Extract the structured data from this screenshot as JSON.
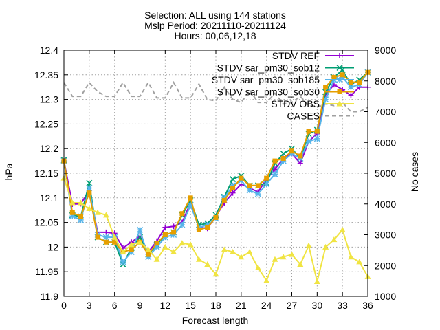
{
  "chart_data": {
    "type": "line",
    "title_lines": [
      "Selection: ALL using    144 stations",
      "Mslp   Period: 20211110-20211124",
      "Hours: 00,06,12,18"
    ],
    "xlabel": "Forecast length",
    "ylabel": "hPa",
    "y2label": "No cases",
    "xlim": [
      0,
      36
    ],
    "ylim": [
      11.9,
      12.4
    ],
    "y2lim": [
      1000,
      9000
    ],
    "xticks": [
      "0",
      "3",
      "6",
      "9",
      "12",
      "15",
      "18",
      "21",
      "24",
      "27",
      "30",
      "33",
      "36"
    ],
    "yticks": [
      "11.9",
      "11.95",
      "12",
      "12.05",
      "12.1",
      "12.15",
      "12.2",
      "12.25",
      "12.3",
      "12.35",
      "12.4"
    ],
    "y2ticks": [
      "1000",
      "2000",
      "3000",
      "4000",
      "5000",
      "6000",
      "7000",
      "8000",
      "9000"
    ],
    "grid": true,
    "legend_position": "top-right",
    "x": [
      0,
      1,
      2,
      3,
      4,
      5,
      6,
      7,
      8,
      9,
      10,
      11,
      12,
      13,
      14,
      15,
      16,
      17,
      18,
      19,
      20,
      21,
      22,
      23,
      24,
      25,
      26,
      27,
      28,
      29,
      30,
      31,
      32,
      33,
      34,
      35,
      36
    ],
    "series": [
      {
        "name": "STDV REF",
        "color": "#9400d3",
        "marker": "plus",
        "axis": "y",
        "values": [
          12.175,
          12.087,
          12.088,
          12.115,
          12.03,
          12.03,
          12.028,
          11.998,
          12.01,
          12.022,
          11.99,
          12.012,
          12.04,
          12.042,
          12.05,
          12.09,
          12.04,
          12.038,
          12.062,
          12.09,
          12.11,
          12.128,
          12.12,
          12.112,
          12.138,
          12.158,
          12.18,
          12.19,
          12.17,
          12.215,
          12.23,
          12.31,
          12.33,
          12.32,
          12.308,
          12.325,
          12.325
        ]
      },
      {
        "name": "STDV sar_pm30_sob12",
        "color": "#009e73",
        "marker": "x",
        "axis": "y",
        "values": [
          12.177,
          12.065,
          12.062,
          12.13,
          12.02,
          12.01,
          12.01,
          11.965,
          11.998,
          12.02,
          11.985,
          12.005,
          12.025,
          12.03,
          12.065,
          12.095,
          12.045,
          12.048,
          12.065,
          12.102,
          12.138,
          12.145,
          12.125,
          12.125,
          12.13,
          12.17,
          12.19,
          12.2,
          12.18,
          12.23,
          12.238,
          12.315,
          12.345,
          12.36,
          12.33,
          12.34,
          12.355
        ]
      },
      {
        "name": "STDV sar_pm30_sob185",
        "color": "#56b4e9",
        "marker": "star",
        "axis": "y",
        "values": [
          12.175,
          12.063,
          12.055,
          12.12,
          12.025,
          12.02,
          12.02,
          11.97,
          11.99,
          12.035,
          11.98,
          12.0,
          12.02,
          12.025,
          12.045,
          12.085,
          12.04,
          12.045,
          12.058,
          12.1,
          12.125,
          12.135,
          12.115,
          12.108,
          12.128,
          12.148,
          12.175,
          12.19,
          12.18,
          12.215,
          12.22,
          12.3,
          12.34,
          12.345,
          12.325,
          12.33,
          12.355
        ]
      },
      {
        "name": "STDV sar_pm30_sob30",
        "color": "#e69f00",
        "marker": "square",
        "axis": "y",
        "values": [
          12.175,
          12.07,
          12.062,
          12.11,
          12.02,
          12.01,
          12.01,
          11.99,
          11.995,
          12.01,
          11.985,
          12.008,
          12.025,
          12.03,
          12.068,
          12.1,
          12.035,
          12.04,
          12.06,
          12.095,
          12.12,
          12.14,
          12.125,
          12.125,
          12.14,
          12.175,
          12.18,
          12.195,
          12.185,
          12.235,
          12.235,
          12.325,
          12.345,
          12.35,
          12.335,
          12.335,
          12.355
        ]
      },
      {
        "name": "STDV OBS",
        "color": "#f0e442",
        "marker": "triangle",
        "axis": "y",
        "values": [
          12.14,
          12.09,
          12.09,
          12.078,
          12.07,
          12.065,
          12.02,
          11.99,
          12.005,
          12.01,
          11.995,
          11.975,
          12.0,
          11.99,
          12.008,
          12.005,
          11.975,
          11.965,
          11.945,
          11.995,
          11.99,
          11.98,
          11.99,
          11.958,
          11.932,
          11.975,
          11.98,
          11.985,
          11.965,
          12.003,
          11.93,
          12.0,
          12.015,
          12.035,
          11.98,
          11.97,
          11.94
        ]
      },
      {
        "name": "CASES",
        "color": "#a0a0a0",
        "marker": "none",
        "dashed": true,
        "axis": "y2",
        "values": [
          7950,
          7500,
          7500,
          7950,
          7650,
          7500,
          7500,
          7950,
          7500,
          7500,
          7950,
          7450,
          7450,
          7950,
          7450,
          7450,
          7900,
          7400,
          7350,
          7800,
          7400,
          7300,
          7700,
          7300,
          7300,
          7600,
          7250,
          7300,
          7500,
          7200,
          7150,
          7250,
          7200,
          7300,
          7000,
          7000,
          7150
        ]
      }
    ]
  }
}
